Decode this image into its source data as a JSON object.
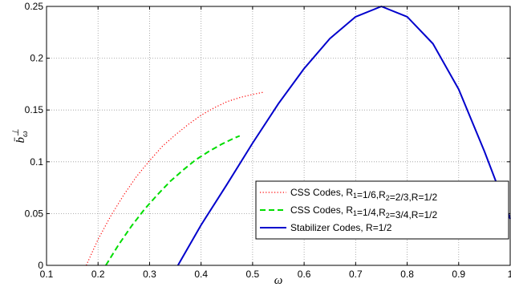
{
  "chart_data": {
    "type": "line",
    "xlabel": "ω",
    "ylabel_main": "b̄",
    "ylabel_sub": "ω",
    "ylabel_sup": "⊥",
    "xlim": [
      0.1,
      1.0
    ],
    "ylim": [
      0,
      0.25
    ],
    "grid": true,
    "legend_position": "bottom-right",
    "x_ticks": [
      0.1,
      0.2,
      0.3,
      0.4,
      0.5,
      0.6,
      0.7,
      0.8,
      0.9,
      1.0
    ],
    "x_tick_labels": [
      "0.1",
      "0.2",
      "0.3",
      "0.4",
      "0.5",
      "0.6",
      "0.7",
      "0.8",
      "0.9",
      "1"
    ],
    "y_ticks": [
      0,
      0.05,
      0.1,
      0.15,
      0.2,
      0.25
    ],
    "y_tick_labels": [
      "0",
      "0.05",
      "0.1",
      "0.15",
      "0.2",
      "0.25"
    ],
    "series": [
      {
        "legend_parts": [
          {
            "t": "CSS Codes, R"
          },
          {
            "t": "1",
            "sub": true
          },
          {
            "t": "=1/6,R"
          },
          {
            "t": "2",
            "sub": true
          },
          {
            "t": "=2/3,R=1/2"
          }
        ],
        "color": "#ff0000",
        "style": "dotted",
        "x": [
          0.177,
          0.2,
          0.225,
          0.25,
          0.275,
          0.3,
          0.325,
          0.35,
          0.375,
          0.4,
          0.425,
          0.45,
          0.475,
          0.5,
          0.52
        ],
        "y": [
          0.0,
          0.025,
          0.048,
          0.068,
          0.086,
          0.101,
          0.115,
          0.126,
          0.136,
          0.145,
          0.152,
          0.158,
          0.162,
          0.165,
          0.167
        ]
      },
      {
        "legend_parts": [
          {
            "t": "CSS Codes, R"
          },
          {
            "t": "1",
            "sub": true
          },
          {
            "t": "=1/4,R"
          },
          {
            "t": "2",
            "sub": true
          },
          {
            "t": "=3/4,R=1/2"
          }
        ],
        "color": "#00dd00",
        "style": "dashed",
        "x": [
          0.215,
          0.24,
          0.265,
          0.29,
          0.315,
          0.34,
          0.365,
          0.39,
          0.415,
          0.44,
          0.465,
          0.475
        ],
        "y": [
          0.0,
          0.02,
          0.038,
          0.054,
          0.068,
          0.081,
          0.092,
          0.102,
          0.11,
          0.117,
          0.123,
          0.125
        ]
      },
      {
        "legend_parts": [
          {
            "t": "Stabilizer Codes, R=1/2"
          }
        ],
        "color": "#0000cc",
        "style": "solid",
        "x": [
          0.355,
          0.4,
          0.45,
          0.5,
          0.55,
          0.6,
          0.65,
          0.7,
          0.75,
          0.8,
          0.85,
          0.9,
          0.95,
          1.0
        ],
        "y": [
          0.0,
          0.039,
          0.078,
          0.118,
          0.156,
          0.19,
          0.219,
          0.24,
          0.25,
          0.24,
          0.214,
          0.17,
          0.11,
          0.045
        ]
      }
    ]
  }
}
